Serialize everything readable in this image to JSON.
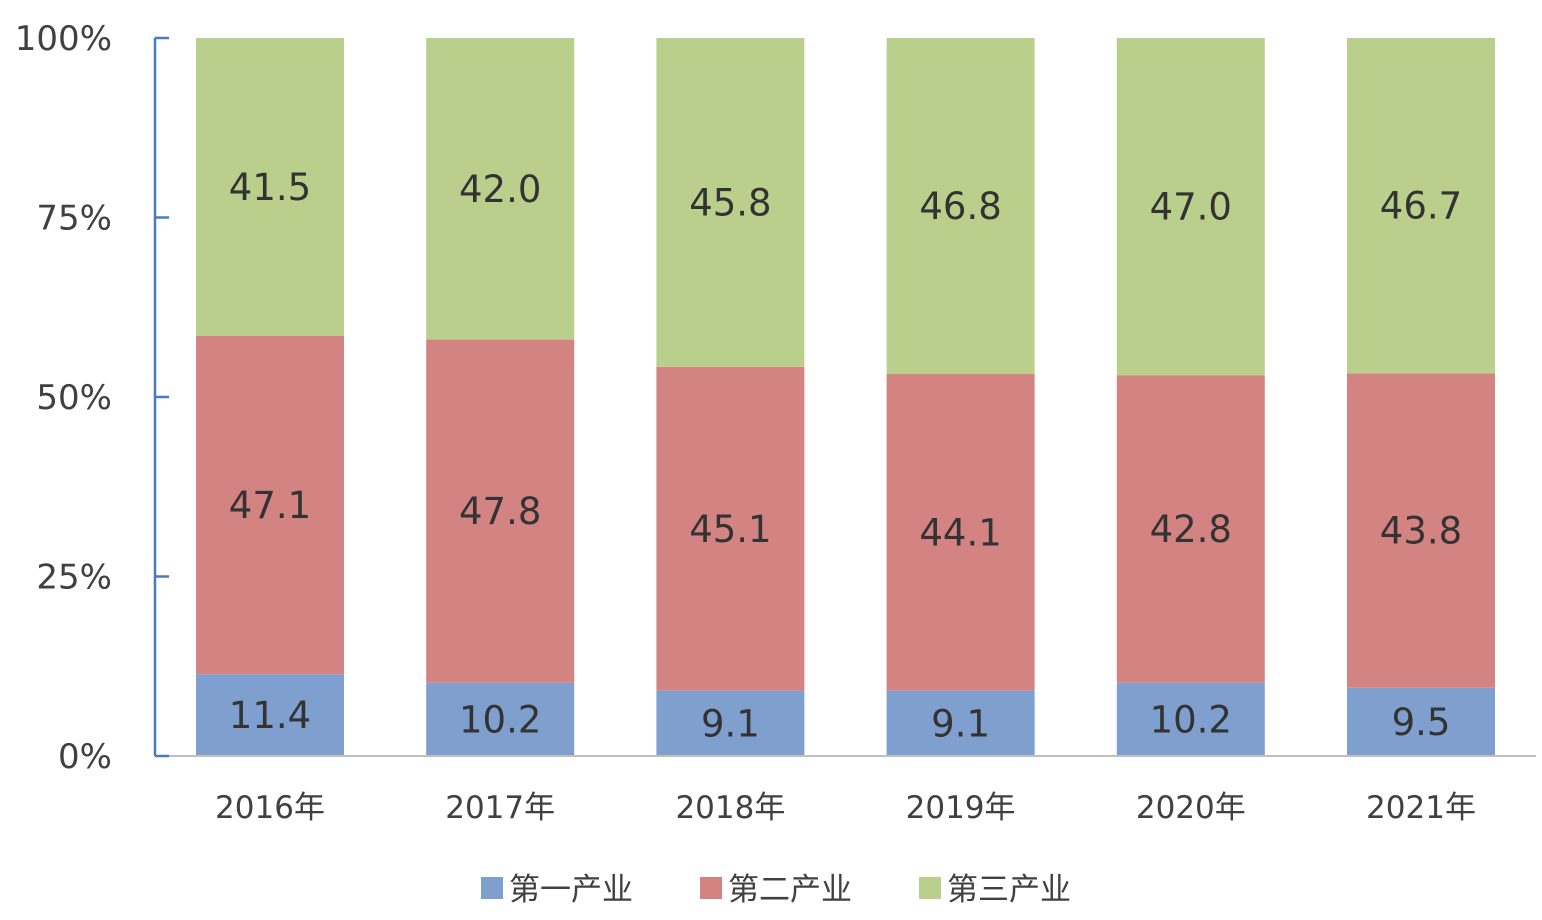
{
  "chart_data": {
    "type": "bar",
    "stacked": true,
    "percent_stacked": true,
    "categories": [
      "2016年",
      "2017年",
      "2018年",
      "2019年",
      "2020年",
      "2021年"
    ],
    "series": [
      {
        "name": "第一产业",
        "color": "#7f9fcf",
        "values": [
          11.4,
          10.2,
          9.1,
          9.1,
          10.2,
          9.5
        ]
      },
      {
        "name": "第二产业",
        "color": "#d38381",
        "values": [
          47.1,
          47.8,
          45.1,
          44.1,
          42.8,
          43.8
        ]
      },
      {
        "name": "第三产业",
        "color": "#bbcf8d",
        "values": [
          41.5,
          42.0,
          45.8,
          46.8,
          47.0,
          46.7
        ]
      }
    ],
    "yticks": [
      "0%",
      "25%",
      "50%",
      "75%",
      "100%"
    ],
    "ylim": [
      0,
      100
    ],
    "title": "",
    "xlabel": "",
    "ylabel": "",
    "legend_position": "bottom",
    "grid": false,
    "data_labels": true
  }
}
